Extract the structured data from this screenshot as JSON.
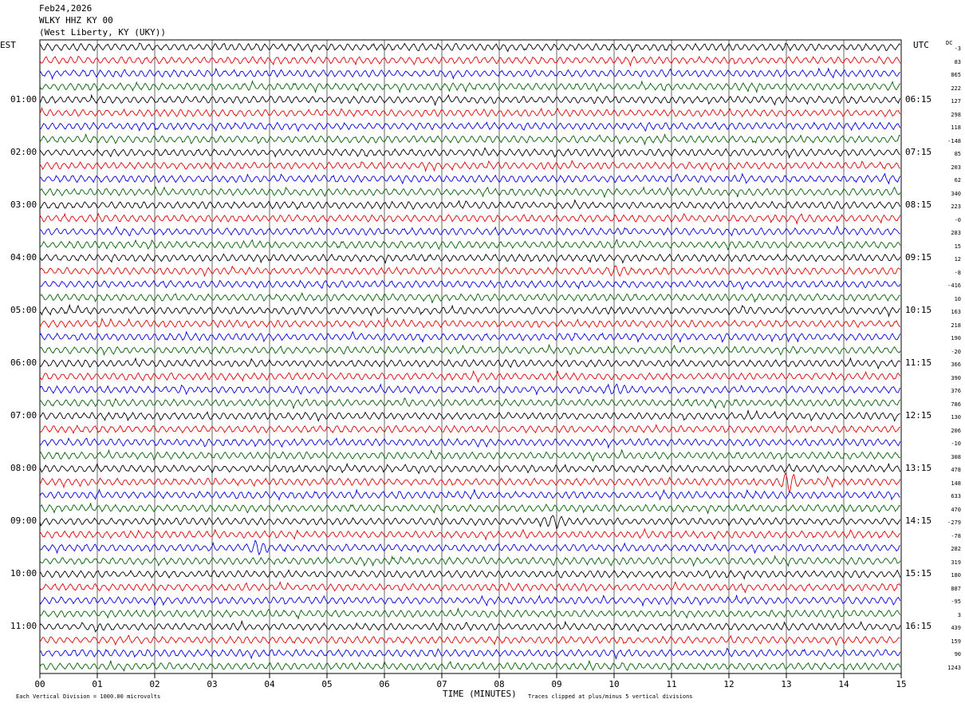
{
  "header": {
    "date": "Feb24,2026",
    "station": "WLKY HHZ KY 00",
    "location": "(West Liberty, KY (UKY))"
  },
  "left_zone": "EST",
  "right_zone": "UTC",
  "dc_label": "DC",
  "dc_values": [
    "-3",
    "83",
    "865",
    "222",
    "127",
    "298",
    "118",
    "-148",
    "85",
    "203",
    "62",
    "340",
    "223",
    "-0",
    "283",
    "15",
    "12",
    "-8",
    "-416",
    "10",
    "163",
    "218",
    "190",
    "-20",
    "366",
    "390",
    "376",
    "786",
    "130",
    "206",
    "-10",
    "308",
    "478",
    "148",
    "633",
    "470",
    "-279",
    "-78",
    "282",
    "319",
    "180",
    "887",
    "-95",
    "3",
    "439",
    "159",
    "90",
    "1243"
  ],
  "footer": {
    "scale_note": "Each Vertical Division = 1000.00 microvolts",
    "clip_note": "Traces clipped at plus/minus 5 vertical divisions"
  },
  "chart_data": {
    "type": "line",
    "title": "",
    "xlabel": "TIME (MINUTES)",
    "ylabel": "",
    "x_ticks": [
      "00",
      "01",
      "02",
      "03",
      "04",
      "05",
      "06",
      "07",
      "08",
      "09",
      "10",
      "11",
      "12",
      "13",
      "14",
      "15"
    ],
    "xlim": [
      0,
      15
    ],
    "y_ticks_left": [
      "01:00",
      "02:00",
      "03:00",
      "04:00",
      "05:00",
      "06:00",
      "07:00",
      "08:00",
      "09:00",
      "10:00",
      "11:00"
    ],
    "y_ticks_right": [
      "06:15",
      "07:15",
      "08:15",
      "09:15",
      "10:15",
      "11:15",
      "12:15",
      "13:15",
      "14:15",
      "15:15",
      "16:15"
    ],
    "rows": 48,
    "minutes_per_row": 15,
    "trace_colors": [
      "#000000",
      "#e00000",
      "#0000e0",
      "#006000"
    ],
    "grid": true,
    "events": [
      {
        "row": 33,
        "minute": 13.05,
        "amplitude": "large",
        "color": "#e00000"
      },
      {
        "row": 36,
        "minute": 8.95,
        "amplitude": "medium",
        "color": "#000000"
      },
      {
        "row": 38,
        "minute": 3.8,
        "amplitude": "medium",
        "color": "#0000e0"
      },
      {
        "row": 17,
        "minute": 10.05,
        "amplitude": "small",
        "color": "#e00000"
      },
      {
        "row": 26,
        "minute": 10.05,
        "amplitude": "small",
        "color": "#0000e0"
      }
    ]
  }
}
